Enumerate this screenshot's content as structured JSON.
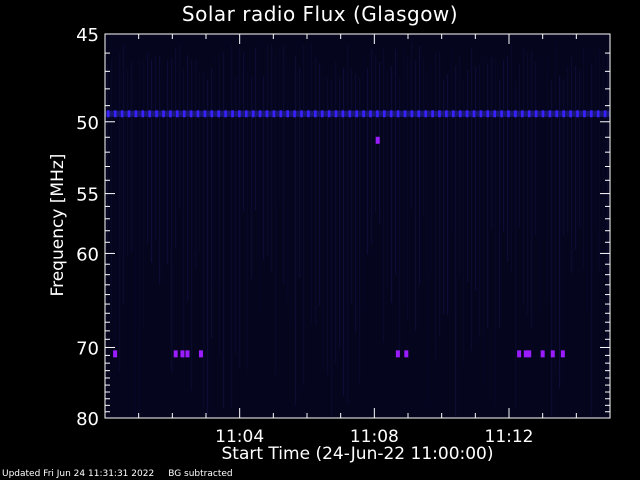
{
  "chart_data": {
    "type": "heatmap",
    "title": "Solar radio Flux (Glasgow)",
    "xlabel": "Start Time (24-Jun-22 11:00:00)",
    "ylabel": "Frequency [MHz]",
    "x_tick_labels": [
      "11:04",
      "11:08",
      "11:12"
    ],
    "x_ticks_minutes": [
      4,
      8,
      12
    ],
    "xlim_minutes": [
      0,
      15
    ],
    "y_tick_values": [
      45,
      50,
      55,
      60,
      70,
      80
    ],
    "ylim": [
      45,
      80
    ],
    "y_scale": "reciprocal",
    "grid": false,
    "colors": {
      "background": "#000000",
      "plot_background": "#05051e",
      "axes": "#ffffff",
      "text": "#ffffff",
      "emission_band": "#3a20ff",
      "burst_markers": "#9a1cff"
    },
    "features": [
      {
        "type": "band",
        "frequency_mhz": 49.5
      },
      {
        "type": "points",
        "frequency_mhz": 70.8,
        "time_minutes": [
          0.3,
          2.1,
          2.3,
          2.45,
          2.85,
          8.7,
          8.95,
          12.3,
          12.5,
          12.6,
          13.0,
          13.3,
          13.6
        ]
      },
      {
        "type": "points",
        "frequency_mhz": 51.2,
        "time_minutes": [
          8.1
        ]
      }
    ]
  },
  "footer": {
    "updated": "Updated Fri Jun 24 11:31:31 2022",
    "note": "BG subtracted"
  }
}
